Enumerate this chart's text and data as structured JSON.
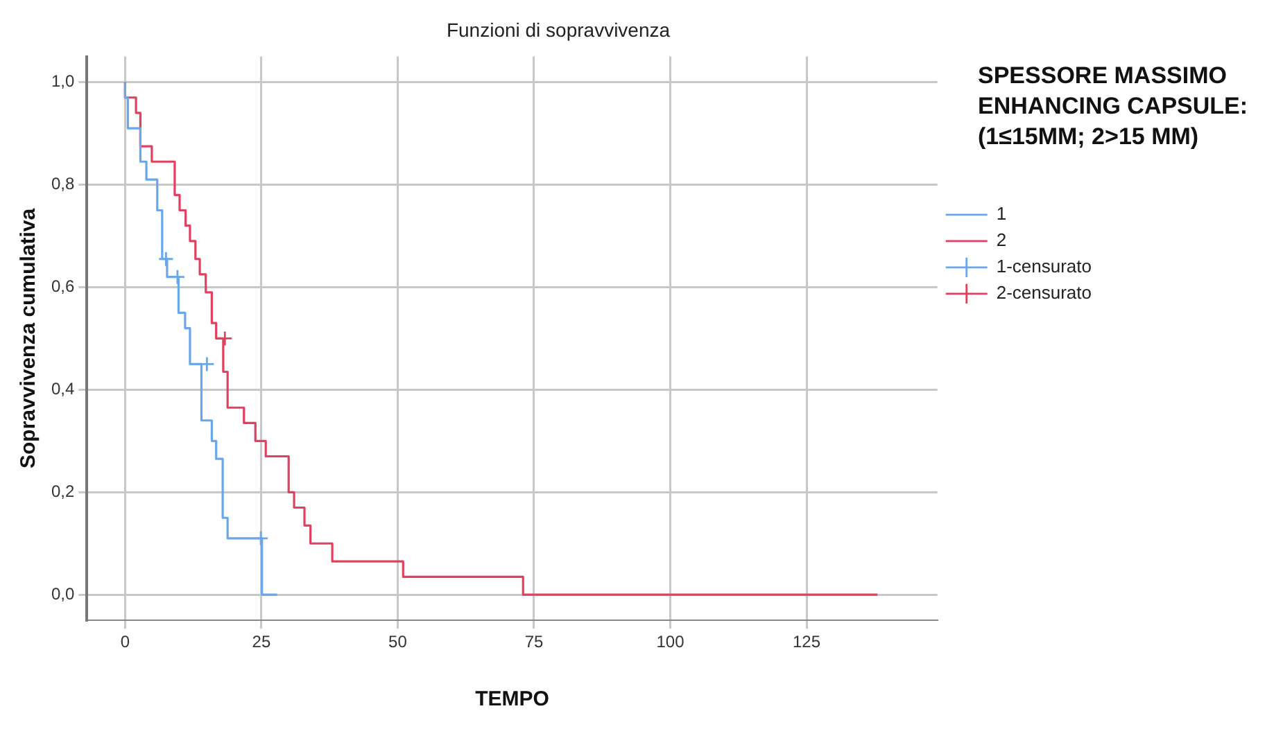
{
  "chart_data": {
    "type": "step",
    "title": "Funzioni di sopravvivenza",
    "xlabel": "TEMPO",
    "ylabel": "Sopravvivenza cumulativa",
    "legend_title": "SPESSORE MASSIMO ENHANCING CAPSULE: (1≤15MM; 2>15 MM)",
    "legend": "top right",
    "grid": true,
    "xlim": [
      -7,
      149
    ],
    "xticks": [
      0,
      25,
      50,
      75,
      100,
      125
    ],
    "ylim": [
      -0.05,
      1.05
    ],
    "yticks": [
      {
        "value": 0,
        "label": "0,0"
      },
      {
        "value": 0.2,
        "label": "0,2"
      },
      {
        "value": 0.4,
        "label": "0,4"
      },
      {
        "value": 0.6,
        "label": "0,6"
      },
      {
        "value": 0.8,
        "label": "0,8"
      },
      {
        "value": 1,
        "label": "1,0"
      }
    ],
    "series": [
      {
        "name": "1",
        "color": "#6aa6ea",
        "x": [
          0,
          0.5,
          2.8,
          3.9,
          5.9,
          6.8,
          7.7,
          9.8,
          11.0,
          11.9,
          14.0,
          15.9,
          16.7,
          17.9,
          18.8,
          25.1,
          27.9
        ],
        "values": [
          1,
          0.97,
          0.91,
          0.845,
          0.81,
          0.75,
          0.655,
          0.62,
          0.55,
          0.52,
          0.45,
          0.34,
          0.3,
          0.265,
          0.15,
          0.11,
          0
        ]
      },
      {
        "name": "2",
        "color": "#e2405f",
        "x": [
          0,
          2.0,
          2.8,
          4.9,
          9.1,
          10.0,
          11.1,
          11.9,
          12.9,
          13.7,
          14.8,
          15.9,
          16.7,
          18.0,
          18.8,
          21.8,
          23.9,
          25.8,
          30.0,
          31.0,
          32.9,
          34.0,
          38.0,
          51.0,
          73.0,
          138.0
        ],
        "values": [
          1,
          0.97,
          0.94,
          0.875,
          0.845,
          0.78,
          0.75,
          0.72,
          0.69,
          0.655,
          0.625,
          0.59,
          0.53,
          0.5,
          0.435,
          0.365,
          0.335,
          0.3,
          0.27,
          0.2,
          0.17,
          0.135,
          0.1,
          0.065,
          0.035,
          0
        ]
      },
      {
        "name": "1-censurato",
        "type": "scatter",
        "marker": "cross",
        "color": "#6aa6ea",
        "x": [
          7.5,
          9.6,
          15.0,
          24.9
        ],
        "values": [
          0.655,
          0.62,
          0.45,
          0.11
        ]
      },
      {
        "name": "2-censurato",
        "type": "scatter",
        "marker": "cross",
        "color": "#e2405f",
        "x": [
          18.3
        ],
        "values": [
          0.5
        ]
      }
    ]
  }
}
